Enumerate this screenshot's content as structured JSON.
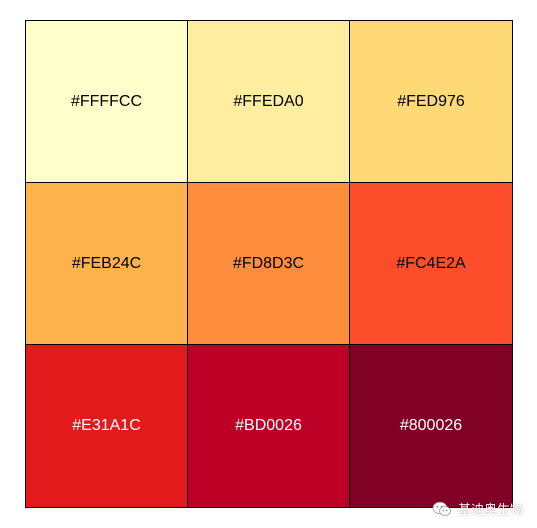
{
  "cells": [
    {
      "label": "#FFFFCC",
      "bg": "#FFFFCC",
      "fg": "#000000"
    },
    {
      "label": "#FFEDA0",
      "bg": "#FFEDA0",
      "fg": "#000000"
    },
    {
      "label": "#FED976",
      "bg": "#FED976",
      "fg": "#000000"
    },
    {
      "label": "#FEB24C",
      "bg": "#FEB24C",
      "fg": "#000000"
    },
    {
      "label": "#FD8D3C",
      "bg": "#FD8D3C",
      "fg": "#000000"
    },
    {
      "label": "#FC4E2A",
      "bg": "#FC4E2A",
      "fg": "#000000"
    },
    {
      "label": "#E31A1C",
      "bg": "#E31A1C",
      "fg": "#FFFFFF"
    },
    {
      "label": "#BD0026",
      "bg": "#BD0026",
      "fg": "#FFFFFF"
    },
    {
      "label": "#800026",
      "bg": "#800026",
      "fg": "#FFFFFF"
    }
  ],
  "watermark": {
    "icon": "wechat-icon",
    "text": "基迪奥生物"
  }
}
